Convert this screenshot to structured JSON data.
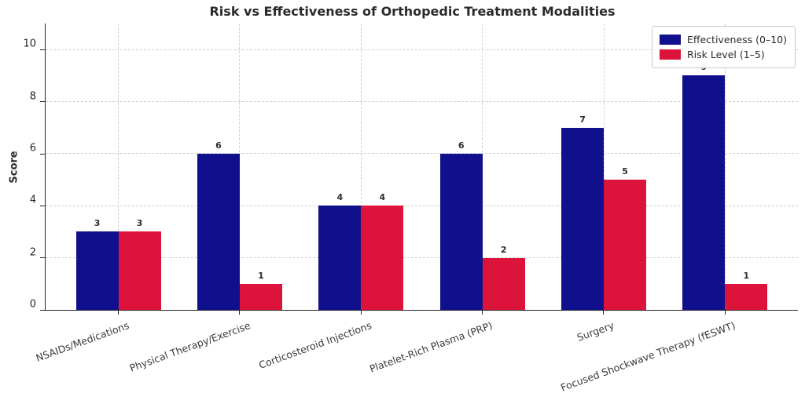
{
  "title": "Risk vs Effectiveness of Orthopedic Treatment Modalities",
  "chart_data": {
    "type": "bar",
    "title": "Risk vs Effectiveness of Orthopedic Treatment Modalities",
    "categories": [
      "NSAIDs/Medications",
      "Physical Therapy/Exercise",
      "Corticosteroid Injections",
      "Platelet-Rich Plasma (PRP)",
      "Surgery",
      "Focused Shockwave Therapy (fESWT)"
    ],
    "series": [
      {
        "name": "Effectiveness (0–10)",
        "color": "#10108c",
        "values": [
          3,
          6,
          4,
          6,
          7,
          9
        ]
      },
      {
        "name": "Risk Level (1–5)",
        "color": "#dc143c",
        "values": [
          3,
          1,
          4,
          2,
          5,
          1
        ]
      }
    ],
    "xlabel": "",
    "ylabel": "Score",
    "yticks": [
      0,
      2,
      4,
      6,
      8,
      10
    ],
    "ylim": [
      0,
      11
    ],
    "grid": "dashed, both axes",
    "legend_position": "upper right",
    "bar_value_labels": true,
    "x_tick_rotation_deg": 20
  }
}
